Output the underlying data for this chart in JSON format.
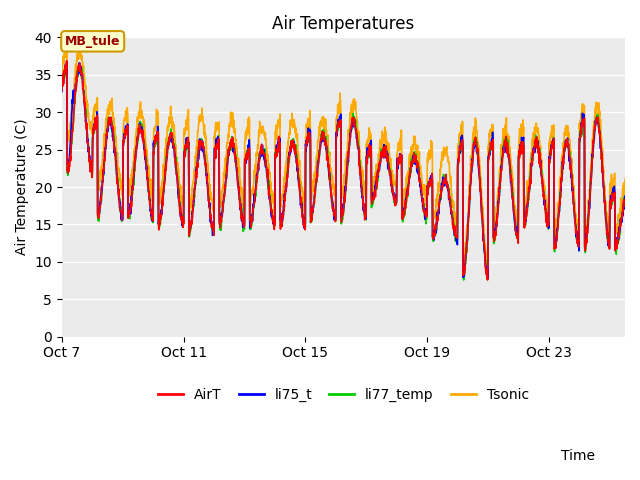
{
  "title": "Air Temperatures",
  "xlabel": "Time",
  "ylabel": "Air Temperature (C)",
  "ylim": [
    0,
    40
  ],
  "yticks": [
    0,
    5,
    10,
    15,
    20,
    25,
    30,
    35,
    40
  ],
  "annotation_text": "MB_tule",
  "annotation_facecolor": "#ffffcc",
  "annotation_edgecolor": "#cc9900",
  "annotation_textcolor": "#990000",
  "colors": {
    "AirT": "#ff0000",
    "li75_t": "#0000ff",
    "li77_temp": "#00cc00",
    "Tsonic": "#ffaa00"
  },
  "line_widths": {
    "AirT": 1.2,
    "li75_t": 1.2,
    "li77_temp": 1.2,
    "Tsonic": 1.2
  },
  "plot_bgcolor": "#ebebeb",
  "fig_bgcolor": "#ffffff",
  "title_fontsize": 12,
  "label_fontsize": 10,
  "tick_fontsize": 10,
  "legend_fontsize": 10,
  "start_day": 7,
  "end_day": 25.5,
  "xtick_days": [
    7,
    11,
    15,
    19,
    23
  ],
  "xtick_labels": [
    "Oct 7",
    "Oct 11",
    "Oct 15",
    "Oct 19",
    "Oct 23"
  ]
}
